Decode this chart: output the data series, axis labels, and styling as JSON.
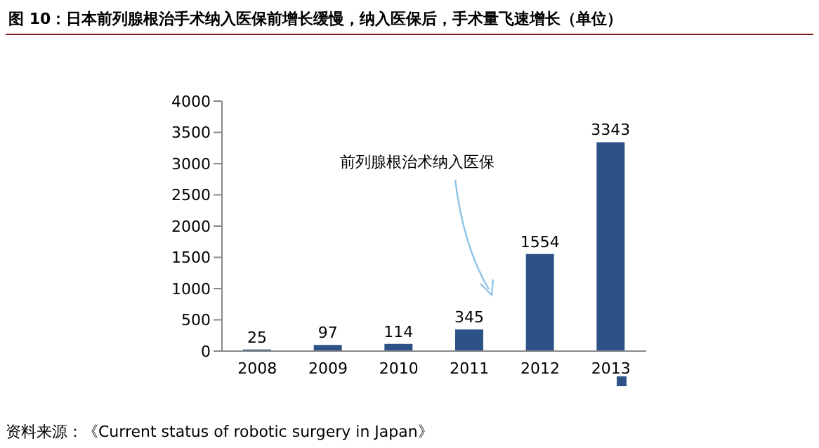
{
  "chart_data": {
    "type": "bar",
    "title": "图 10：日本前列腺根治手术纳入医保前增长缓慢，纳入医保后，手术量飞速增长（单位）",
    "categories": [
      "2008",
      "2009",
      "2010",
      "2011",
      "2012",
      "2013"
    ],
    "values": [
      25,
      97,
      114,
      345,
      1554,
      3343
    ],
    "color": "#2c5287",
    "ylim": [
      0,
      4000
    ],
    "yticks": [
      0,
      500,
      1000,
      1500,
      2000,
      2500,
      3000,
      3500,
      4000
    ],
    "grid": false,
    "data_labels": true,
    "annotations": [
      "前列腺根治术纳入医保",
      "资料来源：《Current status of robotic surgery in Japan》"
    ]
  }
}
